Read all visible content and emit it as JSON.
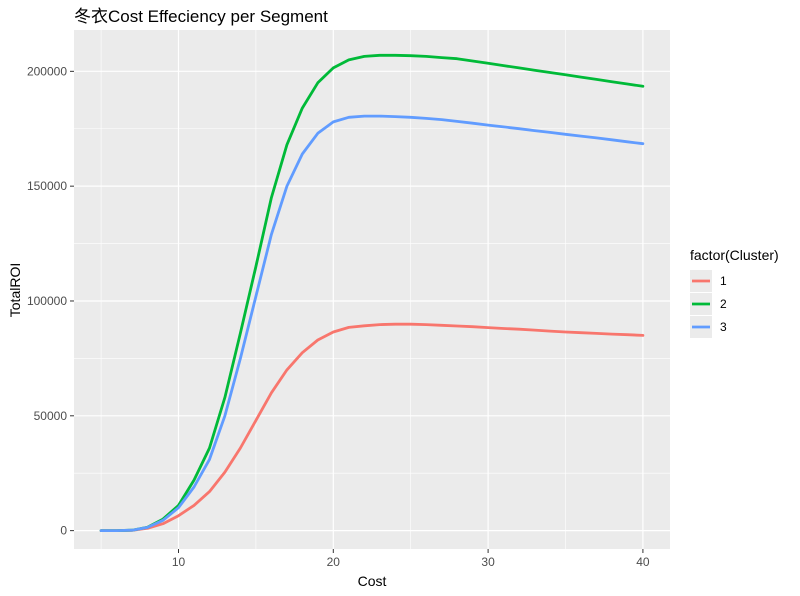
{
  "chart_data": {
    "type": "line",
    "title": "冬衣Cost Effeciency per Segment",
    "xlabel": "Cost",
    "ylabel": "TotalROI",
    "xlim": [
      3.25,
      41.75
    ],
    "ylim": [
      -8000,
      218000
    ],
    "x_ticks": [
      10,
      20,
      30,
      40
    ],
    "y_ticks": [
      0,
      50000,
      100000,
      150000,
      200000
    ],
    "x_tick_labels": [
      "10",
      "20",
      "30",
      "40"
    ],
    "y_tick_labels": [
      "0",
      "50000",
      "100000",
      "150000",
      "200000"
    ],
    "grid": true,
    "legend": {
      "title": "factor(Cluster)",
      "position": "right"
    },
    "x": [
      5,
      6,
      7,
      8,
      9,
      10,
      11,
      12,
      13,
      14,
      15,
      16,
      17,
      18,
      19,
      20,
      21,
      22,
      23,
      24,
      25,
      26,
      27,
      28,
      29,
      30,
      31,
      32,
      33,
      34,
      35,
      36,
      37,
      38,
      39,
      40
    ],
    "series": [
      {
        "name": "1",
        "color": "#F8766D",
        "values": [
          0,
          0,
          100,
          1000,
          3000,
          6500,
          11000,
          17000,
          25500,
          36000,
          48000,
          60000,
          70000,
          77500,
          83000,
          86500,
          88500,
          89200,
          89700,
          89900,
          89900,
          89700,
          89400,
          89100,
          88800,
          88400,
          88000,
          87700,
          87300,
          86900,
          86500,
          86200,
          85900,
          85600,
          85300,
          85000
        ]
      },
      {
        "name": "2",
        "color": "#00BA38",
        "values": [
          0,
          0,
          200,
          1500,
          5000,
          11000,
          22000,
          36000,
          58000,
          86000,
          115000,
          145000,
          168000,
          184000,
          195000,
          201500,
          205000,
          206500,
          207000,
          207000,
          206800,
          206500,
          206000,
          205500,
          204500,
          203500,
          202500,
          201500,
          200500,
          199500,
          198500,
          197500,
          196500,
          195500,
          194500,
          193500
        ]
      },
      {
        "name": "3",
        "color": "#619CFF",
        "values": [
          0,
          0,
          200,
          1400,
          4500,
          10000,
          19000,
          31000,
          50000,
          75000,
          102000,
          129000,
          150000,
          164000,
          173000,
          178000,
          180000,
          180500,
          180500,
          180300,
          180000,
          179500,
          179000,
          178200,
          177400,
          176600,
          175800,
          175000,
          174200,
          173400,
          172600,
          171800,
          171000,
          170200,
          169300,
          168500
        ]
      }
    ]
  }
}
